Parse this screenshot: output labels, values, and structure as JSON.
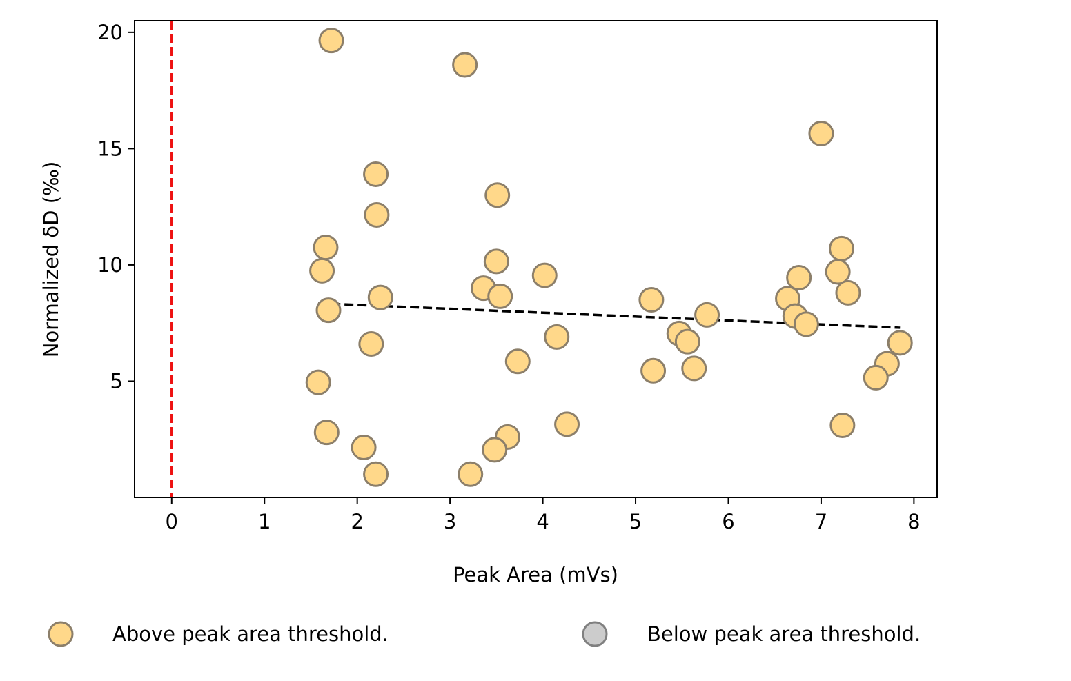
{
  "chart_data": {
    "type": "scatter",
    "title": "",
    "xlabel": "Peak Area (mVs)",
    "ylabel": "Normalized δD (‰)",
    "xlim": [
      -0.4,
      8.25
    ],
    "ylim": [
      0.0,
      20.5
    ],
    "xticks": [
      0,
      1,
      2,
      3,
      4,
      5,
      6,
      7,
      8
    ],
    "yticks": [
      5,
      10,
      15,
      20
    ],
    "grid": false,
    "legend_placement": "bottom",
    "threshold_line": {
      "x": 0,
      "color": "#ee1111",
      "style": "dashed"
    },
    "trend_line": {
      "x": [
        1.58,
        7.85
      ],
      "y": [
        8.35,
        7.3
      ],
      "color": "#000000",
      "style": "dashed"
    },
    "series": [
      {
        "name": "Above peak area threshold.",
        "color": "#ffd88a",
        "edge": "#8c7f6a",
        "points": [
          [
            1.72,
            19.65
          ],
          [
            3.16,
            18.6
          ],
          [
            7.0,
            15.65
          ],
          [
            2.2,
            13.9
          ],
          [
            3.51,
            13.0
          ],
          [
            2.21,
            12.15
          ],
          [
            1.66,
            10.75
          ],
          [
            7.22,
            10.7
          ],
          [
            1.62,
            9.75
          ],
          [
            3.5,
            10.15
          ],
          [
            7.18,
            9.7
          ],
          [
            6.76,
            9.45
          ],
          [
            4.02,
            9.55
          ],
          [
            3.36,
            9.0
          ],
          [
            7.29,
            8.8
          ],
          [
            3.54,
            8.65
          ],
          [
            2.25,
            8.6
          ],
          [
            5.17,
            8.5
          ],
          [
            6.64,
            8.55
          ],
          [
            1.69,
            8.05
          ],
          [
            5.77,
            7.85
          ],
          [
            6.72,
            7.8
          ],
          [
            6.84,
            7.45
          ],
          [
            5.47,
            7.05
          ],
          [
            5.56,
            6.7
          ],
          [
            4.15,
            6.9
          ],
          [
            2.15,
            6.6
          ],
          [
            7.85,
            6.65
          ],
          [
            3.73,
            5.85
          ],
          [
            7.71,
            5.75
          ],
          [
            5.19,
            5.45
          ],
          [
            5.63,
            5.55
          ],
          [
            7.59,
            5.15
          ],
          [
            1.58,
            4.95
          ],
          [
            4.26,
            3.15
          ],
          [
            7.23,
            3.1
          ],
          [
            1.67,
            2.8
          ],
          [
            3.62,
            2.6
          ],
          [
            2.07,
            2.15
          ],
          [
            3.48,
            2.05
          ],
          [
            2.2,
            1.0
          ],
          [
            3.22,
            1.0
          ]
        ]
      },
      {
        "name": "Below peak area threshold.",
        "color": "#cccccc",
        "edge": "#808080",
        "points": []
      }
    ]
  }
}
